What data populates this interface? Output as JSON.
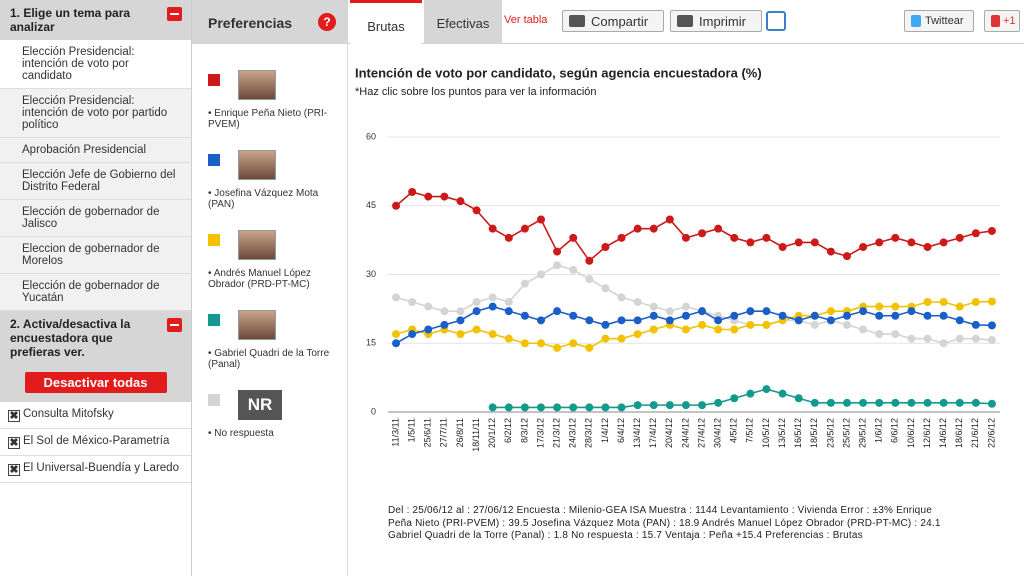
{
  "sidebar": {
    "section1": {
      "title": "1. Elige un tema para analizar",
      "items": [
        "Elección Presidencial: intención de voto por candidato",
        "Elección Presidencial: intención de voto por partido político",
        "Aprobación Presidencial",
        "Elección Jefe de Gobierno del Distrito Federal",
        "Elección de gobernador de Jalisco",
        "Eleccion de gobernador de Morelos",
        "Elección de gobernador de Yucatán"
      ]
    },
    "section2": {
      "title": "2. Activa/desactiva la encuestadora que prefieras ver.",
      "button": "Desactivar todas",
      "items": [
        "Consulta Mitofsky",
        "El Sol de México-Parametría",
        "El Universal-Buendía y Laredo"
      ]
    }
  },
  "header": {
    "title": "Preferencias",
    "help_icon": "?",
    "tabs": [
      "Brutas",
      "Efectivas"
    ],
    "table_link": "Ver tabla",
    "share": "Compartir",
    "print": "Imprimir",
    "tweet": "Twittear",
    "plus": "+1"
  },
  "legend_badge": "NR",
  "chart_data": {
    "type": "line",
    "title": "Intención de voto por candidato, según agencia encuestadora (%)",
    "subtitle": "*Haz clic sobre los puntos para ver la información",
    "categories": [
      "11/3/11",
      "1/5/11",
      "25/6/11",
      "27/7/11",
      "26/8/11",
      "18/11/11",
      "20/1/12",
      "6/2/12",
      "8/3/12",
      "17/3/12",
      "21/3/12",
      "24/3/12",
      "28/3/12",
      "1/4/12",
      "6/4/12",
      "13/4/12",
      "17/4/12",
      "20/4/12",
      "24/4/12",
      "27/4/12",
      "30/4/12",
      "4/5/12",
      "7/5/12",
      "10/5/12",
      "13/5/12",
      "16/5/12",
      "18/5/12",
      "23/5/12",
      "25/5/12",
      "29/5/12",
      "1/6/12",
      "6/6/12",
      "10/6/12",
      "12/6/12",
      "14/6/12",
      "18/6/12",
      "21/6/12",
      "22/6/12"
    ],
    "series": [
      {
        "name": "Enrique Peña Nieto (PRI-PVEM)",
        "color": "#cc1a1a",
        "values": [
          45,
          48,
          47,
          47,
          46,
          44,
          40,
          38,
          40,
          42,
          35,
          38,
          33,
          36,
          38,
          40,
          40,
          42,
          38,
          39,
          40,
          38,
          37,
          38,
          36,
          37,
          37,
          35,
          34,
          36,
          37,
          38,
          37,
          36,
          37,
          38,
          39,
          39.5
        ]
      },
      {
        "name": "Josefina Vázquez Mota (PAN)",
        "color": "#1a5fc8",
        "values": [
          15,
          17,
          18,
          19,
          20,
          22,
          23,
          22,
          21,
          20,
          22,
          21,
          20,
          19,
          20,
          20,
          21,
          20,
          21,
          22,
          20,
          21,
          22,
          22,
          21,
          20,
          21,
          20,
          21,
          22,
          21,
          21,
          22,
          21,
          21,
          20,
          19,
          18.9
        ]
      },
      {
        "name": "Andrés Manuel López Obrador (PRD-PT-MC)",
        "color": "#f2c200",
        "values": [
          17,
          18,
          17,
          18,
          17,
          18,
          17,
          16,
          15,
          15,
          14,
          15,
          14,
          16,
          16,
          17,
          18,
          19,
          18,
          19,
          18,
          18,
          19,
          19,
          20,
          21,
          21,
          22,
          22,
          23,
          23,
          23,
          23,
          24,
          24,
          23,
          24,
          24.1
        ]
      },
      {
        "name": "Gabriel Quadri de la Torre (Panal)",
        "color": "#139a8c",
        "values": [
          null,
          null,
          null,
          null,
          null,
          null,
          1,
          1,
          1,
          1,
          1,
          1,
          1,
          1,
          1,
          1.5,
          1.5,
          1.5,
          1.5,
          1.5,
          2,
          3,
          4,
          5,
          4,
          3,
          2,
          2,
          2,
          2,
          2,
          2,
          2,
          2,
          2,
          2,
          2,
          1.8
        ]
      },
      {
        "name": "No respuesta",
        "color": "#d4d4d4",
        "values": [
          25,
          24,
          23,
          22,
          22,
          24,
          25,
          24,
          28,
          30,
          32,
          31,
          29,
          27,
          25,
          24,
          23,
          22,
          23,
          22,
          21,
          20,
          19,
          19,
          20,
          20,
          19,
          20,
          19,
          18,
          17,
          17,
          16,
          16,
          15,
          16,
          16,
          15.7
        ]
      }
    ],
    "ylim": [
      0,
      60
    ],
    "yticks": [
      0,
      15,
      30,
      45,
      60
    ],
    "grid": true,
    "info": "Del : 25/06/12 al : 27/06/12 Encuesta : Milenio-GEA ISA Muestra : 1144 Levantamiento : Vivienda Error : ±3% Enrique Peña Nieto (PRI-PVEM) : 39.5 Josefina Vázquez Mota (PAN) : 18.9 Andrés Manuel López Obrador (PRD-PT-MC) : 24.1 Gabriel Quadri de la Torre (Panal) : 1.8 No respuesta : 15.7 Ventaja : Peña +15.4 Preferencias : Brutas"
  }
}
